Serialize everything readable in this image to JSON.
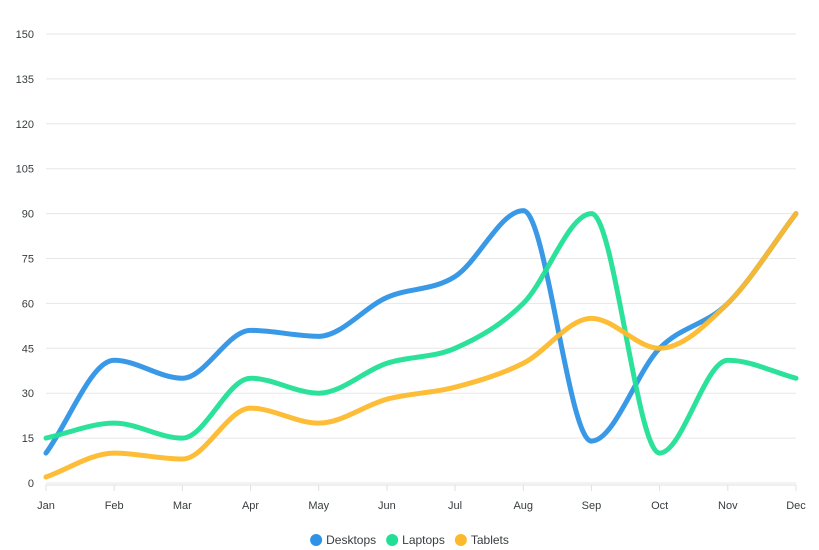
{
  "chart_data": {
    "type": "line",
    "curve": "smooth",
    "categories": [
      "Jan",
      "Feb",
      "Mar",
      "Apr",
      "May",
      "Jun",
      "Jul",
      "Aug",
      "Sep",
      "Oct",
      "Nov",
      "Dec"
    ],
    "series": [
      {
        "name": "Desktops",
        "color": "#2E93E6",
        "values": [
          10,
          41,
          35,
          51,
          49,
          62,
          69,
          91,
          14,
          45,
          60,
          90
        ]
      },
      {
        "name": "Laptops",
        "color": "#21E095",
        "values": [
          15,
          20,
          15,
          35,
          30,
          40,
          45,
          60,
          90,
          10,
          41,
          35
        ]
      },
      {
        "name": "Tablets",
        "color": "#FDB92C",
        "values": [
          2,
          10,
          8,
          25,
          20,
          28,
          32,
          40,
          55,
          45,
          60,
          90
        ]
      }
    ],
    "ylim": [
      0,
      150
    ],
    "yticks": [
      0,
      15,
      30,
      45,
      60,
      75,
      90,
      105,
      120,
      135,
      150
    ],
    "grid": true,
    "legend": "bottom-center"
  }
}
